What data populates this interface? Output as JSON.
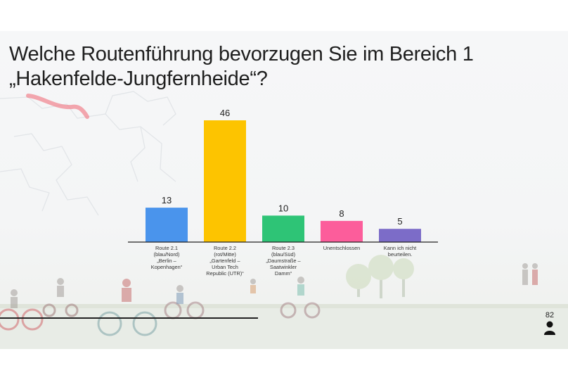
{
  "slide": {
    "title": "Welche Routenführung bevorzugen Sie im Bereich 1 „Hakenfelde-Jungfernheide“?",
    "participants": "82",
    "participants_icon": "person-icon"
  },
  "chart_data": {
    "type": "bar",
    "title": "",
    "xlabel": "",
    "ylabel": "",
    "categories": [
      "Route 2.1 (blau/Nord) „Berlin – Kopenhagen“",
      "Route 2.2 (rot/Mitte) „Gartenfeld – Urban Tech Republic (UTR)“",
      "Route 2.3 (blau/Süd) „Daumstraße – Saatwinkler Damm“",
      "Unentschlossen",
      "Kann ich nicht beurteilen."
    ],
    "category_lines": [
      [
        "Route 2.1",
        "(blau/Nord)",
        "„Berlin –",
        "Kopenhagen“"
      ],
      [
        "Route 2.2",
        "(rot/Mitte)",
        "„Gartenfeld –",
        "Urban Tech",
        "Republic (UTR)“"
      ],
      [
        "Route 2.3",
        "(blau/Süd)",
        "„Daumstraße –",
        "Saatwinkler",
        "Damm“"
      ],
      [
        "Unentschlossen"
      ],
      [
        "Kann ich nicht",
        "beurteilen."
      ]
    ],
    "values": [
      13,
      46,
      10,
      8,
      5
    ],
    "colors": [
      "#4a94ec",
      "#fdc400",
      "#2ec476",
      "#fc5d9b",
      "#7c6cc8"
    ],
    "ylim": [
      0,
      46
    ],
    "grid": false,
    "legend": "none"
  }
}
